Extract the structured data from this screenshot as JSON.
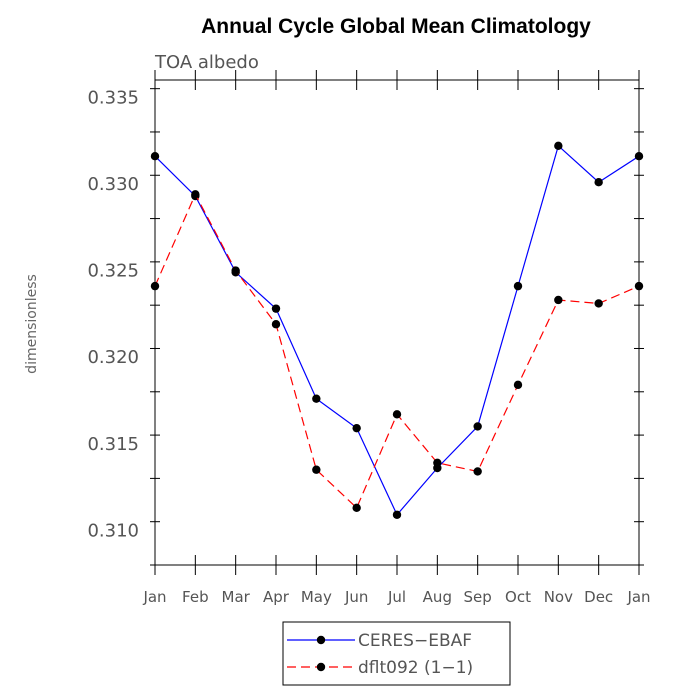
{
  "chart_data": {
    "type": "line",
    "title": "Annual Cycle Global Mean Climatology",
    "subtitle": "TOA albedo",
    "ylabel": "dimensionless",
    "xlabel": "",
    "ylim": [
      0.308,
      0.336
    ],
    "yticks": [
      0.31,
      0.315,
      0.32,
      0.325,
      0.33,
      0.335
    ],
    "ytick_labels": [
      "0.310",
      "0.315",
      "0.320",
      "0.325",
      "0.330",
      "0.335"
    ],
    "categories": [
      "Jan",
      "Feb",
      "Mar",
      "Apr",
      "May",
      "Jun",
      "Jul",
      "Aug",
      "Sep",
      "Oct",
      "Nov",
      "Dec",
      "Jan"
    ],
    "series": [
      {
        "name": "CERES−EBAF",
        "color": "#0000ff",
        "dash": "solid",
        "values": [
          0.3316,
          0.3293,
          0.3249,
          0.3228,
          0.3176,
          0.3159,
          0.3109,
          0.3136,
          0.316,
          0.3241,
          0.3322,
          0.3301,
          0.3316
        ]
      },
      {
        "name": "dflt092 (1−1)",
        "color": "#ff0000",
        "dash": "dashed",
        "values": [
          0.3241,
          0.3294,
          0.325,
          0.3219,
          0.3135,
          0.3113,
          0.3167,
          0.3139,
          0.3134,
          0.3184,
          0.3233,
          0.3231,
          0.3241
        ]
      }
    ],
    "grid": false,
    "legend_position": "bottom"
  }
}
